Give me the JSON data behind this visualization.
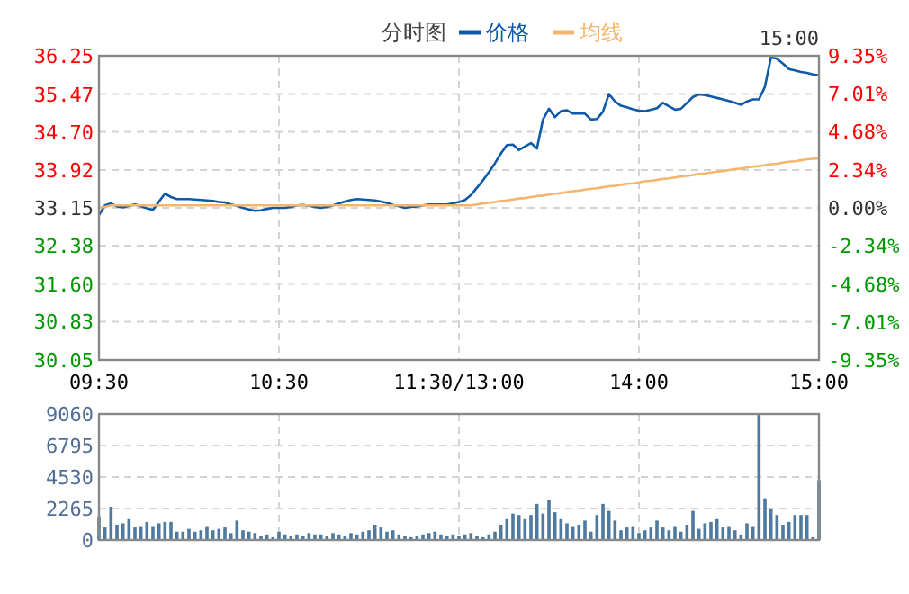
{
  "chart_data": [
    {
      "type": "line",
      "title": "分时图",
      "annotations": [
        "15:00"
      ],
      "legend": "top",
      "grid": true,
      "categories": [
        "09:30",
        null,
        null,
        null,
        null,
        null,
        null,
        null,
        null,
        null,
        null,
        null,
        null,
        null,
        null,
        null,
        null,
        null,
        null,
        null,
        null,
        null,
        null,
        null,
        null,
        null,
        null,
        null,
        null,
        null,
        "10:30",
        null,
        null,
        null,
        null,
        null,
        null,
        null,
        null,
        null,
        null,
        null,
        null,
        null,
        null,
        null,
        null,
        null,
        null,
        null,
        null,
        null,
        null,
        null,
        null,
        null,
        null,
        null,
        null,
        null,
        "11:30/13:00",
        null,
        null,
        null,
        null,
        null,
        null,
        null,
        null,
        null,
        null,
        null,
        null,
        null,
        null,
        null,
        null,
        null,
        null,
        null,
        null,
        null,
        null,
        null,
        null,
        null,
        null,
        null,
        null,
        null,
        "14:00",
        null,
        null,
        null,
        null,
        null,
        null,
        null,
        null,
        null,
        null,
        null,
        null,
        null,
        null,
        null,
        null,
        null,
        null,
        null,
        null,
        null,
        null,
        null,
        null,
        null,
        null,
        null,
        null,
        null,
        "15:00"
      ],
      "ylim": [
        30.05,
        36.25
      ],
      "yticks": [
        30.05,
        30.83,
        {
          "value": 31.6,
          "label": "31.60"
        },
        32.38,
        33.15,
        33.92,
        {
          "value": 34.7,
          "label": "34.70"
        },
        35.47,
        36.25
      ],
      "y2lim": [
        -9.35,
        9.35
      ],
      "y2ticks": [
        {
          "value": -9.35,
          "label": "-9.35%"
        },
        {
          "value": -7.01,
          "label": "-7.01%"
        },
        {
          "value": -4.68,
          "label": "-4.68%"
        },
        {
          "value": -2.34,
          "label": "-2.34%"
        },
        {
          "value": 0,
          "label": "0.00%"
        },
        {
          "value": 2.34,
          "label": "2.34%"
        },
        {
          "value": 4.68,
          "label": "4.68%"
        },
        {
          "value": 7.01,
          "label": "7.01%"
        },
        {
          "value": 9.35,
          "label": "9.35%"
        }
      ],
      "series": [
        {
          "name": "价格",
          "color": "#0f5aa8",
          "values": [
            33.0,
            33.2,
            33.24,
            33.18,
            33.16,
            33.19,
            33.22,
            33.18,
            33.14,
            33.11,
            33.28,
            33.44,
            33.37,
            33.33,
            33.33,
            33.33,
            33.32,
            33.31,
            33.3,
            33.29,
            33.27,
            33.26,
            33.22,
            33.19,
            33.15,
            33.12,
            33.09,
            33.1,
            33.13,
            33.15,
            33.15,
            33.15,
            33.17,
            33.2,
            33.21,
            33.19,
            33.17,
            33.15,
            33.17,
            33.2,
            33.24,
            33.28,
            33.31,
            33.33,
            33.32,
            33.31,
            33.3,
            33.28,
            33.25,
            33.21,
            33.18,
            33.15,
            33.17,
            33.18,
            33.2,
            33.22,
            33.22,
            33.22,
            33.22,
            33.24,
            33.27,
            33.31,
            33.41,
            33.56,
            33.71,
            33.88,
            34.06,
            34.26,
            34.43,
            34.44,
            34.33,
            34.4,
            34.47,
            34.36,
            34.95,
            35.17,
            35.0,
            35.12,
            35.14,
            35.07,
            35.07,
            35.07,
            34.95,
            34.96,
            35.11,
            35.47,
            35.32,
            35.23,
            35.2,
            35.16,
            35.13,
            35.12,
            35.15,
            35.18,
            35.29,
            35.22,
            35.15,
            35.17,
            35.29,
            35.41,
            35.46,
            35.45,
            35.42,
            35.39,
            35.36,
            35.33,
            35.29,
            35.25,
            35.32,
            35.36,
            35.36,
            35.62,
            36.22,
            36.19,
            36.09,
            35.98,
            35.95,
            35.92,
            35.9,
            35.87,
            35.85
          ]
        },
        {
          "name": "均线",
          "color": "#f5b56e",
          "values": [
            33.15,
            33.17,
            33.2,
            33.2,
            33.2,
            33.2,
            33.2,
            33.2,
            33.2,
            33.2,
            33.2,
            33.2,
            33.2,
            33.2,
            33.2,
            33.2,
            33.2,
            33.2,
            33.2,
            33.2,
            33.2,
            33.2,
            33.2,
            33.2,
            33.2,
            33.2,
            33.2,
            33.2,
            33.2,
            33.2,
            33.2,
            33.2,
            33.2,
            33.2,
            33.2,
            33.2,
            33.2,
            33.2,
            33.2,
            33.2,
            33.2,
            33.2,
            33.2,
            33.2,
            33.2,
            33.2,
            33.2,
            33.2,
            33.2,
            33.2,
            33.2,
            33.2,
            33.2,
            33.2,
            33.2,
            33.2,
            33.2,
            33.2,
            33.2,
            33.2,
            33.2,
            33.2,
            33.2,
            33.22,
            33.24,
            33.25,
            33.27,
            33.29,
            33.3,
            33.32,
            33.34,
            33.35,
            33.37,
            33.39,
            33.4,
            33.42,
            33.44,
            33.45,
            33.47,
            33.49,
            33.5,
            33.52,
            33.54,
            33.55,
            33.57,
            33.59,
            33.6,
            33.62,
            33.64,
            33.65,
            33.67,
            33.69,
            33.7,
            33.72,
            33.74,
            33.75,
            33.77,
            33.79,
            33.8,
            33.82,
            33.84,
            33.85,
            33.87,
            33.89,
            33.9,
            33.92,
            33.94,
            33.95,
            33.97,
            33.99,
            34.0,
            34.02,
            34.04,
            34.05,
            34.07,
            34.09,
            34.1,
            34.12,
            34.14,
            34.15,
            34.16
          ]
        }
      ]
    },
    {
      "type": "bar",
      "grid": true,
      "tick_labels": "y",
      "color": "#4f7aa0",
      "categories": [
        null,
        null,
        null,
        null,
        null,
        null,
        null,
        null,
        null,
        null,
        null,
        null,
        null,
        null,
        null,
        null,
        null,
        null,
        null,
        null,
        null,
        null,
        null,
        null,
        null,
        null,
        null,
        null,
        null,
        null,
        null,
        null,
        null,
        null,
        null,
        null,
        null,
        null,
        null,
        null,
        null,
        null,
        null,
        null,
        null,
        null,
        null,
        null,
        null,
        null,
        null,
        null,
        null,
        null,
        null,
        null,
        null,
        null,
        null,
        null,
        null,
        null,
        null,
        null,
        null,
        null,
        null,
        null,
        null,
        null,
        null,
        null,
        null,
        null,
        null,
        null,
        null,
        null,
        null,
        null,
        null,
        null,
        null,
        null,
        null,
        null,
        null,
        null,
        null,
        null,
        null,
        null,
        null,
        null,
        null,
        null,
        null,
        null,
        null,
        null,
        null,
        null,
        null,
        null,
        null,
        null,
        null,
        null,
        null,
        null,
        null,
        null,
        null,
        null,
        null,
        null,
        null,
        null,
        null,
        null,
        null
      ],
      "ylim": [
        0,
        9060
      ],
      "yticks": [
        0,
        2265,
        4530,
        6795,
        9060
      ],
      "values": [
        1700,
        900,
        2400,
        1100,
        1200,
        1500,
        900,
        1000,
        1300,
        1000,
        1200,
        1300,
        1300,
        600,
        600,
        800,
        600,
        700,
        1000,
        700,
        800,
        900,
        500,
        1400,
        700,
        600,
        500,
        300,
        400,
        200,
        600,
        400,
        300,
        400,
        300,
        500,
        400,
        400,
        300,
        500,
        400,
        300,
        500,
        400,
        600,
        700,
        1100,
        900,
        600,
        700,
        400,
        300,
        200,
        300,
        400,
        500,
        600,
        400,
        300,
        400,
        300,
        400,
        500,
        300,
        200,
        400,
        600,
        1100,
        1500,
        1900,
        1800,
        1500,
        1800,
        2600,
        1900,
        2900,
        2000,
        1500,
        1200,
        1000,
        1100,
        1400,
        600,
        1800,
        2600,
        2100,
        1400,
        700,
        900,
        1000,
        500,
        700,
        900,
        1400,
        900,
        700,
        1000,
        600,
        1100,
        2100,
        800,
        1200,
        1300,
        1500,
        900,
        1000,
        700,
        400,
        1200,
        1000,
        9000,
        3000,
        2200,
        1800,
        1100,
        1300,
        1800,
        1800,
        1800,
        200,
        4300
      ]
    }
  ]
}
